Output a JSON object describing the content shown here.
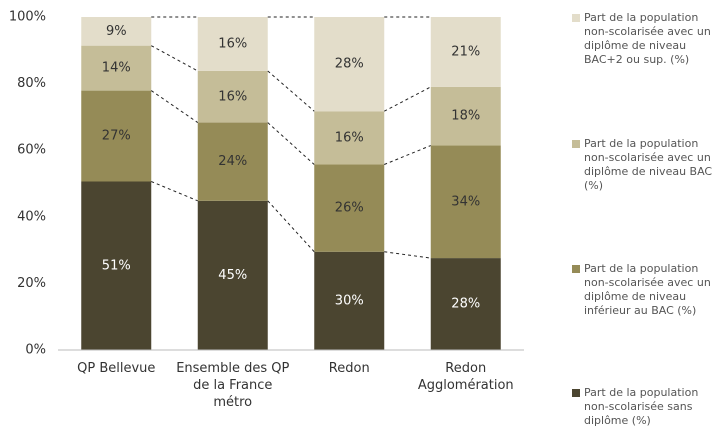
{
  "chart_data": {
    "type": "stacked_bar_percent",
    "categories": [
      "QP Bellevue",
      "Ensemble des QP\nde la France\nmétro",
      "Redon",
      "Redon\nAgglomération"
    ],
    "series": [
      {
        "name": "Part de la population\nnon-scolarisée sans\ndiplôme (%)",
        "color": "#4b4530",
        "values": [
          50.6,
          44.8,
          29.5,
          27.6
        ],
        "value_labels": [
          "51%",
          "45%",
          "30%",
          "28%"
        ]
      },
      {
        "name": "Part de la population\nnon-scolarisée avec un\ndiplôme de niveau\ninférieur au BAC (%)",
        "color": "#958b57",
        "values": [
          27.3,
          23.5,
          26.2,
          33.8
        ],
        "value_labels": [
          "27%",
          "24%",
          "26%",
          "34%"
        ]
      },
      {
        "name": "Part de la population\nnon-scolarisée avec un\ndiplôme de niveau BAC\n(%)",
        "color": "#c5bd98",
        "values": [
          13.5,
          15.5,
          16.0,
          17.6
        ],
        "value_labels": [
          "14%",
          "16%",
          "16%",
          "18%"
        ]
      },
      {
        "name": "Part de la population\nnon-scolarisée avec un\ndiplôme de niveau\nBAC+2 ou sup. (%)",
        "color": "#e3ddca",
        "values": [
          8.6,
          16.2,
          28.3,
          21.0
        ],
        "value_labels": [
          "9%",
          "16%",
          "28%",
          "21%"
        ]
      }
    ],
    "ylim": [
      0,
      100
    ],
    "yticks": [
      {
        "value": 0,
        "label": "0%"
      },
      {
        "value": 20,
        "label": "20%"
      },
      {
        "value": 40,
        "label": "40%"
      },
      {
        "value": 60,
        "label": "60%"
      },
      {
        "value": 80,
        "label": "80%"
      },
      {
        "value": 100,
        "label": "100%"
      }
    ],
    "legend": "right"
  }
}
